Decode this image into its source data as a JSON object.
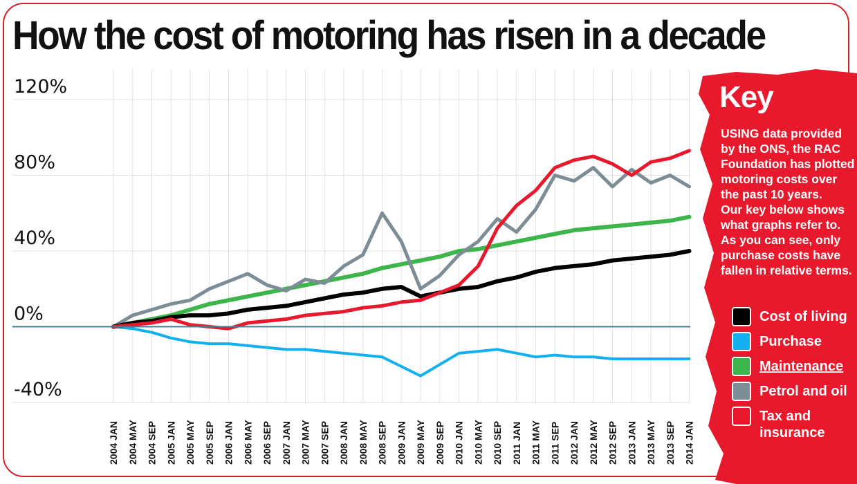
{
  "title": "How the cost of motoring has risen in a decade",
  "colors": {
    "frame": "#d81e2c",
    "key_background": "#e8192c",
    "baseline": "#4d7a8e",
    "grid": "#e2e2e2"
  },
  "key": {
    "title": "Key",
    "description": [
      "USING data provided",
      "by the ONS, the RAC",
      "Foundation has plotted",
      "motoring costs over",
      "the past 10 years.",
      "Our key below shows",
      "what graphs refer to.",
      "As you can see, only",
      "purchase costs have",
      "fallen in relative terms."
    ],
    "items": [
      {
        "label": "Cost of living",
        "color": "#000000"
      },
      {
        "label": "Purchase",
        "color": "#12b0ef"
      },
      {
        "label": "Maintenance",
        "color": "#3db54a"
      },
      {
        "label": "Petrol and oil",
        "color": "#7d8d96"
      },
      {
        "label": "Tax and insurance",
        "color": "#e8192c"
      }
    ]
  },
  "chart_data": {
    "type": "line",
    "title": "How the cost of motoring has risen in a decade",
    "xlabel": "",
    "ylabel": "",
    "ylim": [
      -40,
      120
    ],
    "grid": true,
    "legend": "right",
    "yticks": [
      {
        "value": 120,
        "label": "120%"
      },
      {
        "value": 80,
        "label": "80%"
      },
      {
        "value": 40,
        "label": "40%"
      },
      {
        "value": 0,
        "label": "0%"
      },
      {
        "value": -40,
        "label": "-40%"
      }
    ],
    "x": [
      "2004 JAN",
      "2004 MAY",
      "2004 SEP",
      "2005 JAN",
      "2005 MAY",
      "2005 SEP",
      "2006 JAN",
      "2006 MAY",
      "2006 SEP",
      "2007 JAN",
      "2007 MAY",
      "2007 SEP",
      "2008 JAN",
      "2008 MAY",
      "2008 SEP",
      "2009 JAN",
      "2009 MAY",
      "2009 SEP",
      "2010 JAN",
      "2010 MAY",
      "2010 SEP",
      "2011 JAN",
      "2011 MAY",
      "2011 SEP",
      "2012 JAN",
      "2012 MAY",
      "2012 SEP",
      "2013 JAN",
      "2013 MAY",
      "2013 SEP",
      "2014 JAN"
    ],
    "series": [
      {
        "name": "Cost of living",
        "color": "#000000",
        "width": 6,
        "values": [
          0,
          2,
          3,
          5,
          6,
          6,
          7,
          9,
          10,
          11,
          13,
          15,
          17,
          18,
          20,
          21,
          16,
          18,
          20,
          21,
          24,
          26,
          29,
          31,
          32,
          33,
          35,
          36,
          37,
          38,
          40
        ]
      },
      {
        "name": "Purchase",
        "color": "#12b0ef",
        "width": 4,
        "values": [
          0,
          -1,
          -3,
          -6,
          -8,
          -9,
          -9,
          -10,
          -11,
          -12,
          -12,
          -13,
          -14,
          -15,
          -16,
          -21,
          -26,
          -20,
          -14,
          -13,
          -12,
          -14,
          -16,
          -15,
          -16,
          -16,
          -17,
          -17,
          -17,
          -17,
          -17
        ]
      },
      {
        "name": "Maintenance",
        "color": "#3db54a",
        "width": 6,
        "values": [
          0,
          2,
          4,
          6,
          9,
          12,
          14,
          16,
          18,
          20,
          22,
          24,
          26,
          28,
          31,
          33,
          35,
          37,
          40,
          41,
          43,
          45,
          47,
          49,
          51,
          52,
          53,
          54,
          55,
          56,
          58
        ]
      },
      {
        "name": "Petrol and oil",
        "color": "#7d8d96",
        "width": 5,
        "values": [
          0,
          6,
          9,
          12,
          14,
          20,
          24,
          28,
          22,
          19,
          25,
          23,
          32,
          38,
          60,
          45,
          20,
          27,
          38,
          45,
          57,
          50,
          62,
          80,
          77,
          84,
          74,
          83,
          76,
          80,
          74
        ]
      },
      {
        "name": "Tax and insurance",
        "color": "#e8192c",
        "width": 5,
        "values": [
          0,
          1,
          2,
          4,
          1,
          0,
          -1,
          2,
          3,
          4,
          6,
          7,
          8,
          10,
          11,
          13,
          14,
          18,
          22,
          32,
          52,
          64,
          72,
          84,
          88,
          90,
          86,
          80,
          87,
          89,
          93
        ]
      }
    ]
  }
}
